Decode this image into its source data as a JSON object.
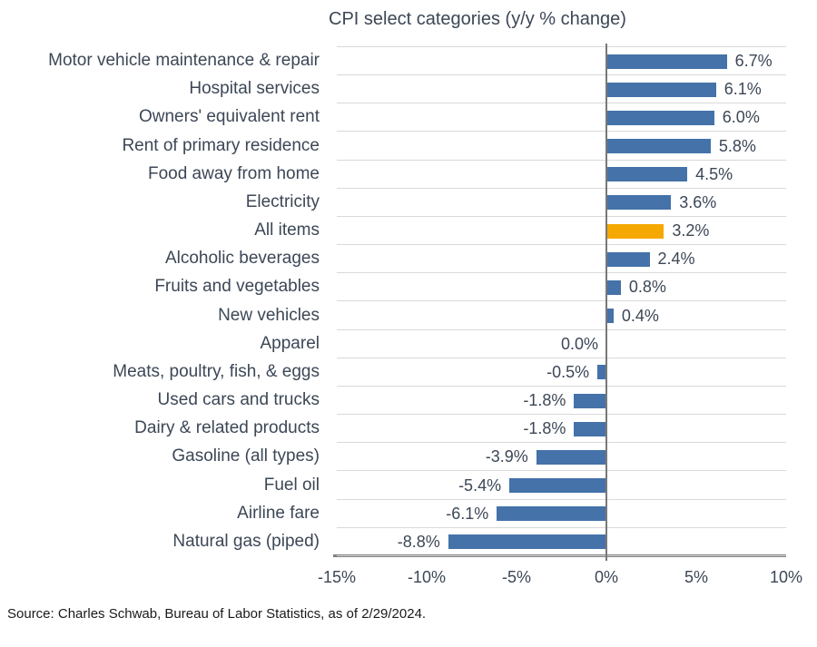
{
  "chart_data": {
    "type": "bar",
    "orientation": "horizontal",
    "title": "CPI select categories (y/y % change)",
    "categories": [
      "Motor vehicle maintenance & repair",
      "Hospital services",
      "Owners' equivalent rent",
      "Rent of primary residence",
      "Food away from home",
      "Electricity",
      "All items",
      "Alcoholic beverages",
      "Fruits and vegetables",
      "New vehicles",
      "Apparel",
      "Meats, poultry, fish, & eggs",
      "Used cars and trucks",
      "Dairy & related products",
      "Gasoline (all types)",
      "Fuel oil",
      "Airline fare",
      "Natural gas (piped)"
    ],
    "values": [
      6.7,
      6.1,
      6.0,
      5.8,
      4.5,
      3.6,
      3.2,
      2.4,
      0.8,
      0.4,
      0.0,
      -0.5,
      -1.8,
      -1.8,
      -3.9,
      -5.4,
      -6.1,
      -8.8
    ],
    "value_labels": [
      "6.7%",
      "6.1%",
      "6.0%",
      "5.8%",
      "4.5%",
      "3.6%",
      "3.2%",
      "2.4%",
      "0.8%",
      "0.4%",
      "0.0%",
      "-0.5%",
      "-1.8%",
      "-1.8%",
      "-3.9%",
      "-5.4%",
      "-6.1%",
      "-8.8%"
    ],
    "highlight_index": 6,
    "highlight_category": "All items",
    "bar_color": "#4472a9",
    "highlight_color": "#f5a800",
    "xlim": [
      -15,
      10
    ],
    "x_ticks": [
      "-15%",
      "-10%",
      "-5%",
      "0%",
      "5%",
      "10%"
    ],
    "x_tick_values": [
      -15,
      -10,
      -5,
      0,
      5,
      10
    ],
    "grid": "horizontal-row-separators",
    "legend": "none"
  },
  "colors": {
    "text": "#3c4756",
    "gridline": "#d9d9d9",
    "axis_line": "#7f7f7f",
    "background": "#ffffff",
    "source_text": "#1a1a1a"
  },
  "source_note": "Source: Charles Schwab, Bureau of Labor Statistics, as of 2/29/2024."
}
